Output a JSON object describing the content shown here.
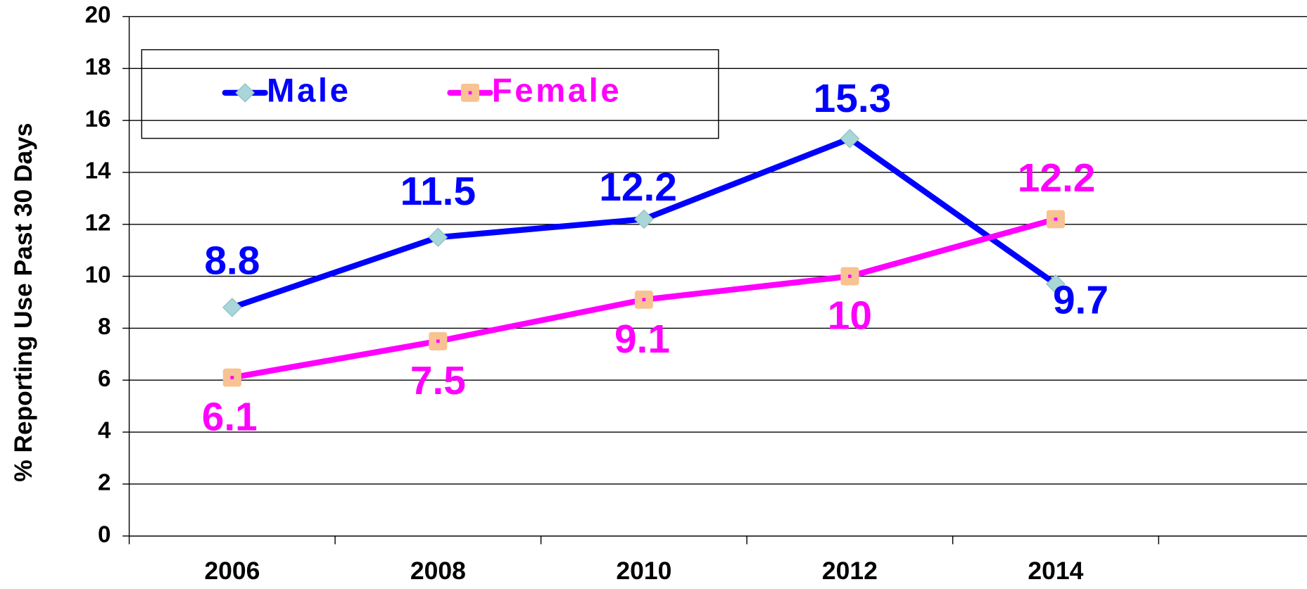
{
  "chart_data": {
    "type": "line",
    "y_label": "% Reporting Use Past 30 Days",
    "categories": [
      "2006",
      "2008",
      "2010",
      "2012",
      "2014"
    ],
    "series": [
      {
        "name": "Male",
        "color": "#0000ff",
        "marker_color": "#a9d6d8",
        "values": [
          8.8,
          11.5,
          12.2,
          15.3,
          9.7
        ]
      },
      {
        "name": "Female",
        "color": "#ff00ff",
        "marker_color": "#f9c293",
        "values": [
          6.1,
          7.5,
          9.1,
          10,
          12.2
        ]
      }
    ],
    "ylim": [
      0,
      20
    ],
    "yticks": [
      0,
      2,
      4,
      6,
      8,
      10,
      12,
      14,
      16,
      18,
      20
    ],
    "grid": true,
    "legend": "top-left"
  }
}
